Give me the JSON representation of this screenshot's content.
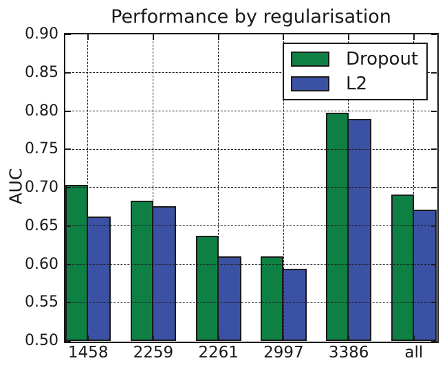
{
  "figure": {
    "background_color": "#ffffff",
    "text_color": "#1a1a1a",
    "axis_color": "#1a1a1a"
  },
  "chart_data": {
    "type": "bar",
    "title": "Performance by regularisation",
    "ylabel": "AUC",
    "xlabel": "",
    "categories": [
      "1458",
      "2259",
      "2261",
      "2997",
      "3386",
      "all"
    ],
    "series": [
      {
        "name": "Dropout",
        "color": "#0e8044",
        "values": [
          0.704,
          0.683,
          0.637,
          0.61,
          0.798,
          0.691
        ]
      },
      {
        "name": "L2",
        "color": "#3b51a3",
        "values": [
          0.662,
          0.676,
          0.61,
          0.594,
          0.79,
          0.671
        ]
      }
    ],
    "ylim": [
      0.5,
      0.9
    ],
    "ytick_labels": [
      "0.90",
      "0.85",
      "0.80",
      "0.75",
      "0.70",
      "0.65",
      "0.60",
      "0.55",
      "0.50"
    ],
    "bar_edge_color": "#1a1a1a",
    "bar_width_fraction": 0.35,
    "x_range": [
      0,
      5.7
    ],
    "grid": true,
    "grid_style": "dashed",
    "legend": {
      "position": "upper-right",
      "entries": [
        "Dropout",
        "L2"
      ]
    }
  }
}
